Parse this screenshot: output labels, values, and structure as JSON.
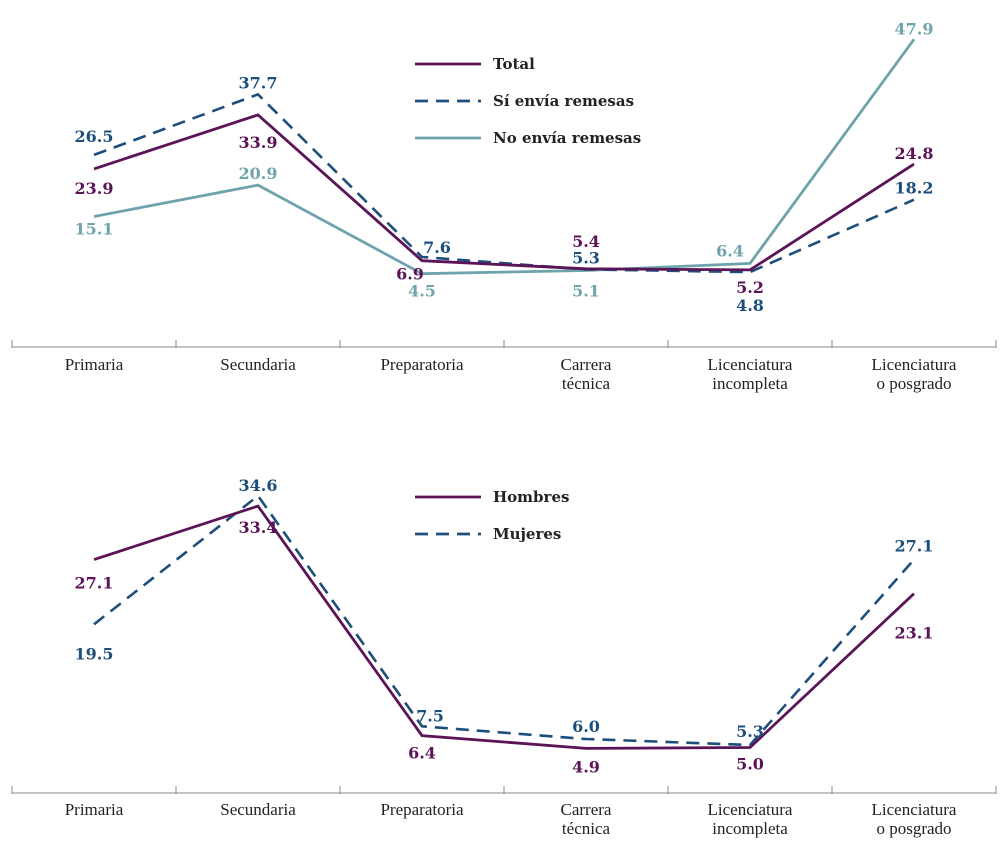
{
  "colors": {
    "purple": "#5a1457",
    "navy": "#1d4f7c",
    "teal": "#6fa3ab",
    "axis": "#8a8a8a"
  },
  "chart_data": [
    {
      "type": "line",
      "categories": [
        [
          "Primaria"
        ],
        [
          "Secundaria"
        ],
        [
          "Preparatoria"
        ],
        [
          "Carrera",
          "técnica"
        ],
        [
          "Licenciatura",
          "incompleta"
        ],
        [
          "Licenciatura",
          "o posgrado"
        ]
      ],
      "series": [
        {
          "name": "Total",
          "color": "#5a1457",
          "dash": "solid",
          "values": [
            23.9,
            33.9,
            6.9,
            5.4,
            5.2,
            24.8
          ],
          "labels": [
            "23.9",
            "33.9",
            "6.9",
            "5.4",
            "5.2",
            "24.8"
          ]
        },
        {
          "name": "Sí envía remesas",
          "color": "#1d4f7c",
          "dash": "dashed",
          "values": [
            26.5,
            37.7,
            7.6,
            5.3,
            4.8,
            18.2
          ],
          "labels": [
            "26.5",
            "37.7",
            "7.6",
            "5.3",
            "4.8",
            "18.2"
          ]
        },
        {
          "name": "No envía remesas",
          "color": "#6fa3ab",
          "dash": "solid",
          "values": [
            15.1,
            20.9,
            4.5,
            5.1,
            6.4,
            47.9
          ],
          "labels": [
            "15.1",
            "20.9",
            "4.5",
            "5.1",
            "6.4",
            "47.9"
          ]
        }
      ],
      "ylim": [
        0,
        50
      ],
      "grid": false,
      "legend": "top-center"
    },
    {
      "type": "line",
      "categories": [
        [
          "Primaria"
        ],
        [
          "Secundaria"
        ],
        [
          "Preparatoria"
        ],
        [
          "Carrera",
          "técnica"
        ],
        [
          "Licenciatura",
          "incompleta"
        ],
        [
          "Licenciatura",
          "o posgrado"
        ]
      ],
      "series": [
        {
          "name": "Hombres",
          "color": "#5a1457",
          "dash": "solid",
          "values": [
            27.1,
            33.4,
            6.4,
            4.9,
            5.0,
            23.1
          ],
          "labels": [
            "27.1",
            "33.4",
            "6.4",
            "4.9",
            "5.0",
            "23.1"
          ]
        },
        {
          "name": "Mujeres",
          "color": "#1d4f7c",
          "dash": "dashed",
          "values": [
            19.5,
            34.6,
            7.5,
            6.0,
            5.3,
            27.1
          ],
          "labels": [
            "19.5",
            "34.6",
            "7.5",
            "6.0",
            "5.3",
            "27.1"
          ]
        }
      ],
      "ylim": [
        0,
        36
      ],
      "grid": false,
      "legend": "top-center"
    }
  ]
}
